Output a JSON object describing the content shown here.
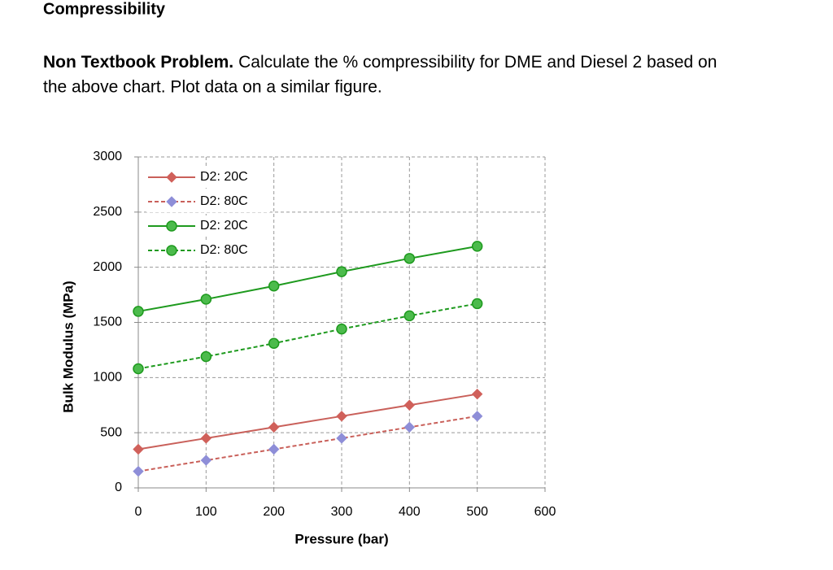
{
  "heading": "Compressibility",
  "paragraph": {
    "bold": "Non Textbook Problem.",
    "line1": "Calculate the % compressibility for DME and Diesel 2 based on",
    "line2": "the above chart. Plot data on a similar figure."
  },
  "chart_data": {
    "type": "line",
    "x_label": "Pressure (bar)",
    "y_label": "Bulk Modulus (MPa)",
    "x": [
      0,
      100,
      200,
      300,
      400,
      500
    ],
    "series": [
      {
        "name": "D2: 20C",
        "color": "#c9605a",
        "marker": "diamond",
        "marker_color": "#d0605a",
        "dashed": false,
        "values": [
          350,
          450,
          550,
          650,
          750,
          850
        ]
      },
      {
        "name": "D2: 80C",
        "color": "#c9605a",
        "marker": "diamond",
        "marker_color": "#8e8ed8",
        "dashed": true,
        "values": [
          150,
          250,
          350,
          450,
          550,
          650
        ]
      },
      {
        "name": "D2: 20C",
        "color": "#1e9a1e",
        "marker": "circle",
        "marker_color": "#4cbb4c",
        "dashed": false,
        "values": [
          1600,
          1710,
          1830,
          1960,
          2080,
          2190
        ]
      },
      {
        "name": "D2: 80C",
        "color": "#1e9a1e",
        "marker": "circle",
        "marker_color": "#4cbb4c",
        "dashed": true,
        "values": [
          1080,
          1190,
          1310,
          1440,
          1560,
          1670
        ]
      }
    ],
    "xlim": [
      0,
      600
    ],
    "xticks": [
      0,
      100,
      200,
      300,
      400,
      500,
      600
    ],
    "ylim": [
      0,
      3000
    ],
    "yticks": [
      0,
      500,
      1000,
      1500,
      2000,
      2500,
      3000
    ],
    "grid": true,
    "legend": "top-left"
  }
}
